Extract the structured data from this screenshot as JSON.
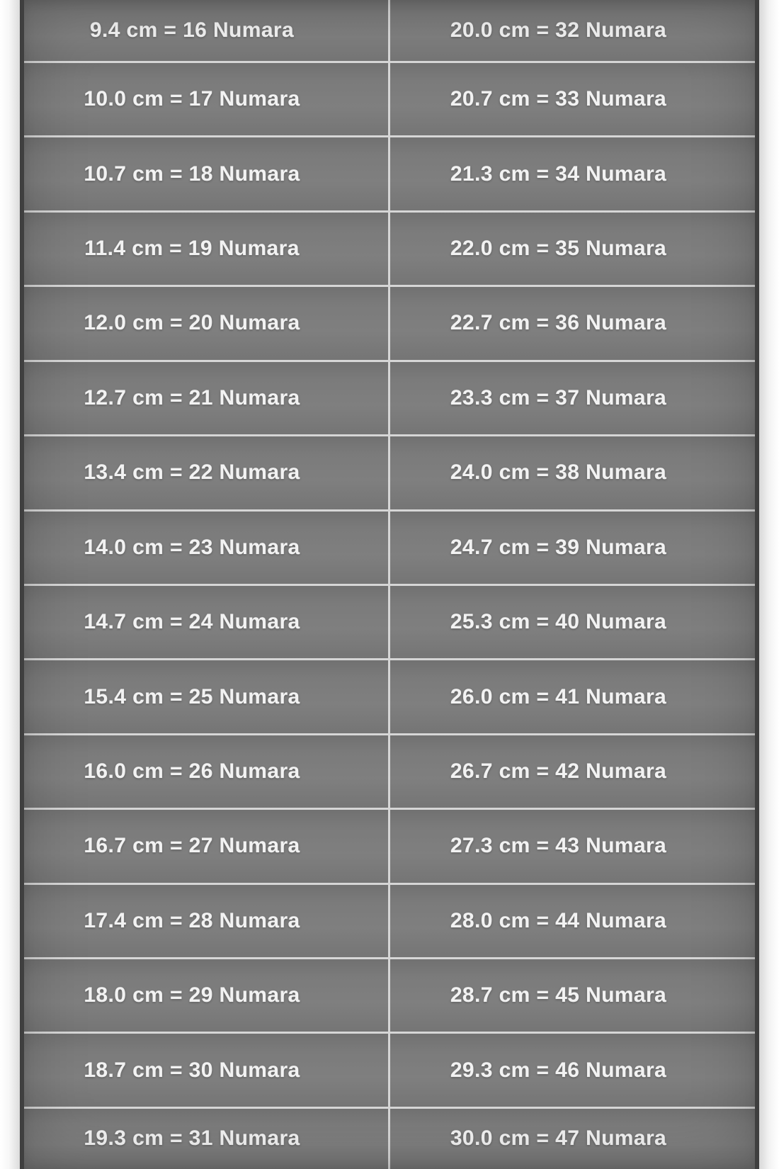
{
  "table": {
    "rows": [
      {
        "left": "9.4 cm = 16 Numara",
        "right": "20.0 cm = 32 Numara"
      },
      {
        "left": "10.0 cm = 17 Numara",
        "right": "20.7 cm = 33 Numara"
      },
      {
        "left": "10.7 cm = 18 Numara",
        "right": "21.3 cm = 34 Numara"
      },
      {
        "left": "11.4 cm = 19 Numara",
        "right": "22.0 cm = 35 Numara"
      },
      {
        "left": "12.0 cm = 20 Numara",
        "right": "22.7 cm = 36 Numara"
      },
      {
        "left": "12.7 cm = 21 Numara",
        "right": "23.3 cm = 37 Numara"
      },
      {
        "left": "13.4 cm = 22 Numara",
        "right": "24.0 cm = 38 Numara"
      },
      {
        "left": "14.0 cm = 23 Numara",
        "right": "24.7 cm = 39 Numara"
      },
      {
        "left": "14.7 cm = 24 Numara",
        "right": "25.3 cm = 40 Numara"
      },
      {
        "left": "15.4 cm = 25 Numara",
        "right": "26.0 cm = 41 Numara"
      },
      {
        "left": "16.0 cm = 26 Numara",
        "right": "26.7 cm = 42 Numara"
      },
      {
        "left": "16.7 cm = 27 Numara",
        "right": "27.3 cm = 43 Numara"
      },
      {
        "left": "17.4 cm = 28 Numara",
        "right": "28.0 cm = 44 Numara"
      },
      {
        "left": "18.0 cm = 29 Numara",
        "right": "28.7 cm = 45 Numara"
      },
      {
        "left": "18.7 cm = 30 Numara",
        "right": "29.3 cm = 46 Numara"
      },
      {
        "left": "19.3 cm = 31 Numara",
        "right": "30.0 cm = 47 Numara"
      }
    ]
  },
  "chart_data": {
    "type": "table",
    "columns": [
      "cm",
      "Numara"
    ],
    "unit_length": "cm",
    "unit_size": "Numara",
    "pairs": [
      [
        9.4,
        16
      ],
      [
        10.0,
        17
      ],
      [
        10.7,
        18
      ],
      [
        11.4,
        19
      ],
      [
        12.0,
        20
      ],
      [
        12.7,
        21
      ],
      [
        13.4,
        22
      ],
      [
        14.0,
        23
      ],
      [
        14.7,
        24
      ],
      [
        15.4,
        25
      ],
      [
        16.0,
        26
      ],
      [
        16.7,
        27
      ],
      [
        17.4,
        28
      ],
      [
        18.0,
        29
      ],
      [
        18.7,
        30
      ],
      [
        19.3,
        31
      ],
      [
        20.0,
        32
      ],
      [
        20.7,
        33
      ],
      [
        21.3,
        34
      ],
      [
        22.0,
        35
      ],
      [
        22.7,
        36
      ],
      [
        23.3,
        37
      ],
      [
        24.0,
        38
      ],
      [
        24.7,
        39
      ],
      [
        25.3,
        40
      ],
      [
        26.0,
        41
      ],
      [
        26.7,
        42
      ],
      [
        27.3,
        43
      ],
      [
        28.0,
        44
      ],
      [
        28.7,
        45
      ],
      [
        29.3,
        46
      ],
      [
        30.0,
        47
      ]
    ],
    "layout": {
      "columns_side_by_side": 2,
      "rows_per_column": 16,
      "grid": true
    }
  },
  "colors": {
    "cell_bg": "#7a7a7a",
    "divider": "#d6d6d6",
    "frame": "#3f3f3f",
    "margin": "#f5f5f5",
    "text": "#f2f2f2"
  }
}
